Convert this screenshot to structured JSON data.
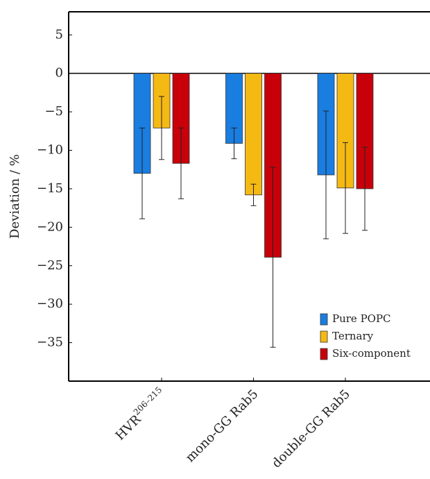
{
  "chart_data": {
    "type": "bar",
    "ylabel": "Deviation / %",
    "categories": [
      "HVR",
      "mono-GG Rab5",
      "double-GG Rab5"
    ],
    "category_superscripts": [
      "206–215",
      null,
      null
    ],
    "series": [
      {
        "name": "Pure POPC",
        "color": "#1a7de0",
        "values": [
          -13.0,
          -9.1,
          -13.2
        ],
        "errors": [
          5.9,
          2.0,
          8.3
        ]
      },
      {
        "name": "Ternary",
        "color": "#f5b914",
        "values": [
          -7.1,
          -15.8,
          -14.9
        ],
        "errors": [
          4.1,
          1.4,
          5.9
        ]
      },
      {
        "name": "Six-component",
        "color": "#c8000a",
        "values": [
          -11.7,
          -23.9,
          -15.0
        ],
        "errors": [
          4.6,
          11.7,
          5.4
        ]
      }
    ],
    "ylim": [
      -40,
      8
    ],
    "yticks": [
      5,
      0,
      {
        "value": -5,
        "label": "−5"
      },
      {
        "value": -10,
        "label": "−10"
      },
      {
        "value": -15,
        "label": "−15"
      },
      {
        "value": -20,
        "label": "−20"
      },
      {
        "value": -25,
        "label": "−25"
      },
      {
        "value": -30,
        "label": "−30"
      },
      {
        "value": -35,
        "label": "−35"
      }
    ],
    "legend": "lower right"
  }
}
